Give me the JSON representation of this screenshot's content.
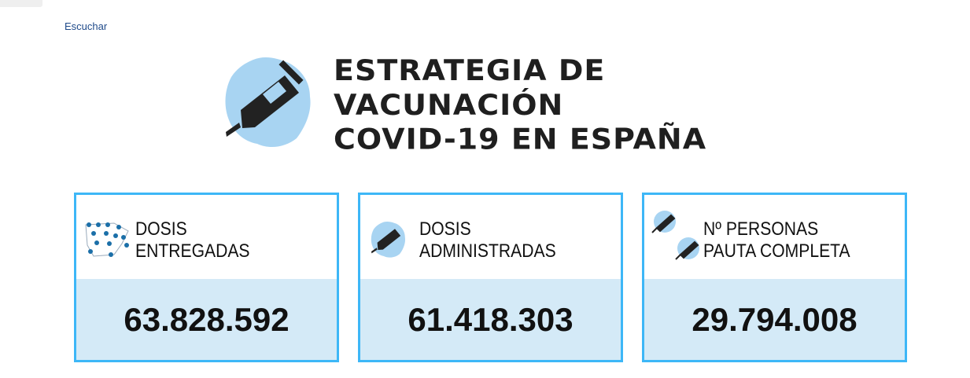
{
  "header": {
    "listen_link": "Escuchar"
  },
  "hero": {
    "title_lines": [
      "ESTRATEGIA DE",
      "VACUNACIÓN",
      "COVID-19 EN ESPAÑA"
    ],
    "icon": "syringe-icon"
  },
  "cards": [
    {
      "label_lines": [
        "DOSIS",
        "ENTREGADAS"
      ],
      "value": "63.828.592",
      "icon": "spain-map-syringes-icon"
    },
    {
      "label_lines": [
        "DOSIS",
        "ADMINISTRADAS"
      ],
      "value": "61.418.303",
      "icon": "syringe-icon"
    },
    {
      "label_lines": [
        "Nº PERSONAS",
        "PAUTA COMPLETA"
      ],
      "value": "29.794.008",
      "icon": "two-syringes-icon"
    }
  ],
  "colors": {
    "card_border": "#3db7f7",
    "value_bg": "#d4eaf7",
    "blob": "#a8d4f2",
    "link": "#1f4a8a"
  }
}
